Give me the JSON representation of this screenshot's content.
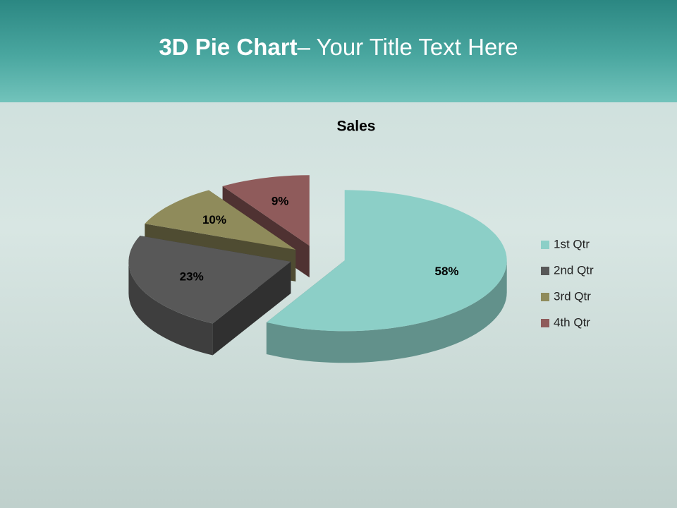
{
  "slide_title": [
    "3D Pie Chart",
    "– Your Title Text Here"
  ],
  "chart_data": {
    "type": "pie",
    "title": "Sales",
    "categories": [
      "1st Qtr",
      "2nd Qtr",
      "3rd Qtr",
      "4th Qtr"
    ],
    "values": [
      58,
      23,
      10,
      9
    ],
    "value_labels": [
      "58%",
      "23%",
      "10%",
      "9%"
    ],
    "colors": [
      "#8ccfc7",
      "#585858",
      "#8f8b5b",
      "#8f5b5b"
    ],
    "legend": "right"
  }
}
